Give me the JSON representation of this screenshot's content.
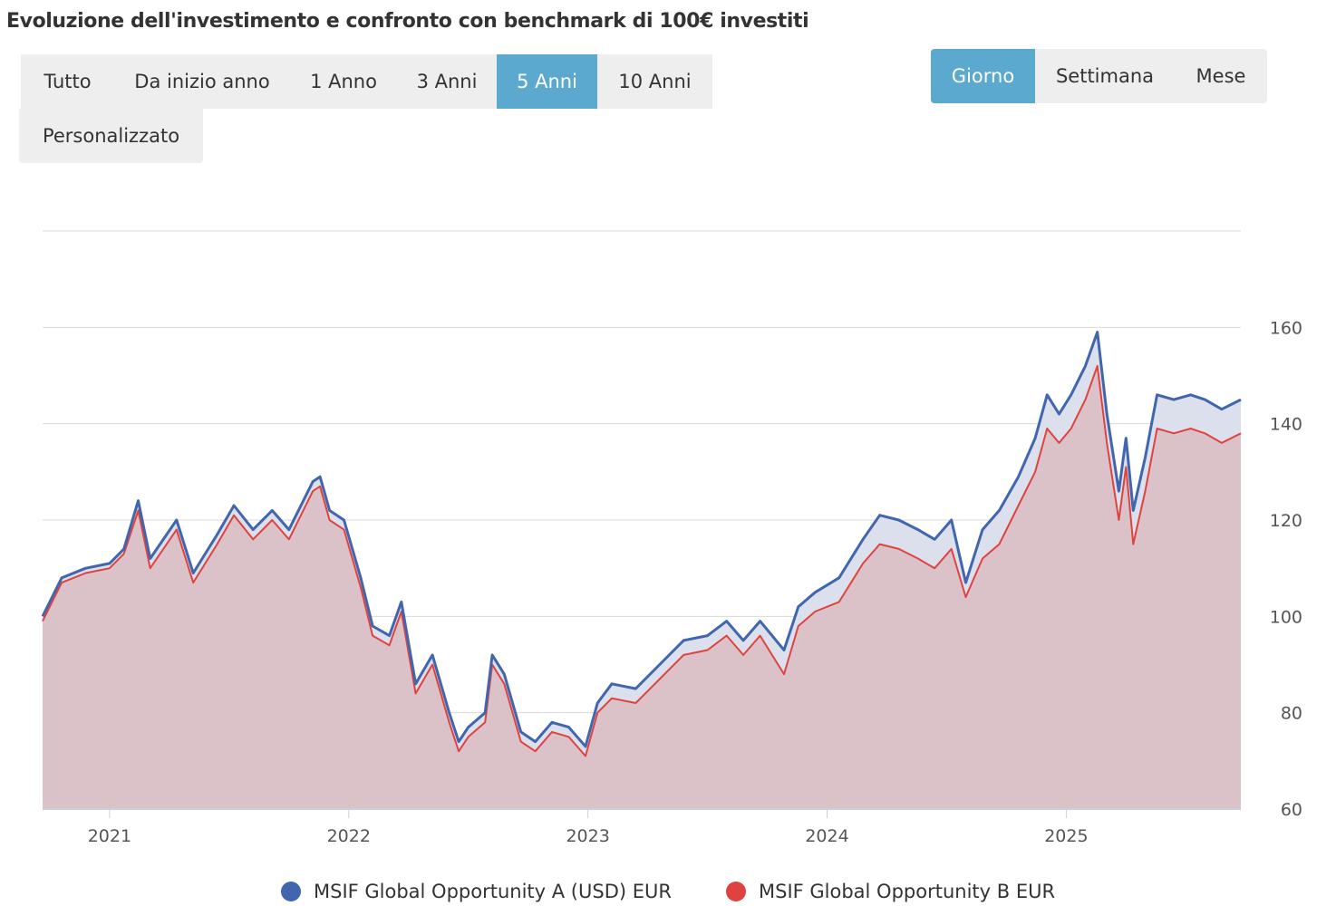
{
  "title": "Evoluzione dell'investimento e confronto con benchmark di 100€ investiti",
  "range_buttons": [
    {
      "label": "Tutto",
      "active": false
    },
    {
      "label": "Da inizio anno",
      "active": false
    },
    {
      "label": "1 Anno",
      "active": false
    },
    {
      "label": "3 Anni",
      "active": false
    },
    {
      "label": "5 Anni",
      "active": true
    },
    {
      "label": "10 Anni",
      "active": false
    }
  ],
  "custom_range_label": "Personalizzato",
  "frequency_buttons": [
    {
      "label": "Giorno",
      "active": true
    },
    {
      "label": "Settimana",
      "active": false
    },
    {
      "label": "Mese",
      "active": false
    }
  ],
  "colors": {
    "accent": "#5ba9cf",
    "series_a": "#4166ae",
    "series_b": "#e0433d",
    "area_b": "#dbc1c8",
    "area_a": "#dbe0ec",
    "grid": "#d8d8d8"
  },
  "chart_data": {
    "type": "area",
    "title": "Evoluzione dell'investimento e confronto con benchmark di 100€ investiti",
    "xlabel": "",
    "ylabel": "",
    "x_ticks": [
      "2021",
      "2022",
      "2023",
      "2024",
      "2025"
    ],
    "x_range": [
      2020.72,
      2025.73
    ],
    "y_ticks": [
      60,
      80,
      100,
      120,
      140,
      160
    ],
    "ylim": [
      60,
      180
    ],
    "y_axis_position": "right",
    "grid": true,
    "legend_position": "bottom-center",
    "series": [
      {
        "name": "MSIF Global Opportunity A (USD) EUR",
        "color": "#4166ae",
        "points": [
          [
            2020.72,
            100
          ],
          [
            2020.8,
            108
          ],
          [
            2020.9,
            110
          ],
          [
            2021.0,
            111
          ],
          [
            2021.06,
            114
          ],
          [
            2021.12,
            124
          ],
          [
            2021.17,
            112
          ],
          [
            2021.28,
            120
          ],
          [
            2021.35,
            109
          ],
          [
            2021.45,
            117
          ],
          [
            2021.52,
            123
          ],
          [
            2021.6,
            118
          ],
          [
            2021.68,
            122
          ],
          [
            2021.75,
            118
          ],
          [
            2021.85,
            128
          ],
          [
            2021.88,
            129
          ],
          [
            2021.92,
            122
          ],
          [
            2021.98,
            120
          ],
          [
            2022.05,
            108
          ],
          [
            2022.1,
            98
          ],
          [
            2022.17,
            96
          ],
          [
            2022.22,
            103
          ],
          [
            2022.28,
            86
          ],
          [
            2022.35,
            92
          ],
          [
            2022.42,
            80
          ],
          [
            2022.46,
            74
          ],
          [
            2022.5,
            77
          ],
          [
            2022.57,
            80
          ],
          [
            2022.6,
            92
          ],
          [
            2022.65,
            88
          ],
          [
            2022.72,
            76
          ],
          [
            2022.78,
            74
          ],
          [
            2022.85,
            78
          ],
          [
            2022.92,
            77
          ],
          [
            2022.99,
            73
          ],
          [
            2023.04,
            82
          ],
          [
            2023.1,
            86
          ],
          [
            2023.2,
            85
          ],
          [
            2023.3,
            90
          ],
          [
            2023.4,
            95
          ],
          [
            2023.5,
            96
          ],
          [
            2023.58,
            99
          ],
          [
            2023.65,
            95
          ],
          [
            2023.72,
            99
          ],
          [
            2023.82,
            93
          ],
          [
            2023.88,
            102
          ],
          [
            2023.95,
            105
          ],
          [
            2024.05,
            108
          ],
          [
            2024.15,
            116
          ],
          [
            2024.22,
            121
          ],
          [
            2024.3,
            120
          ],
          [
            2024.38,
            118
          ],
          [
            2024.45,
            116
          ],
          [
            2024.52,
            120
          ],
          [
            2024.58,
            107
          ],
          [
            2024.65,
            118
          ],
          [
            2024.72,
            122
          ],
          [
            2024.8,
            129
          ],
          [
            2024.87,
            137
          ],
          [
            2024.92,
            146
          ],
          [
            2024.97,
            142
          ],
          [
            2025.02,
            146
          ],
          [
            2025.08,
            152
          ],
          [
            2025.13,
            159
          ],
          [
            2025.17,
            142
          ],
          [
            2025.22,
            126
          ],
          [
            2025.25,
            137
          ],
          [
            2025.28,
            122
          ],
          [
            2025.33,
            133
          ],
          [
            2025.38,
            146
          ],
          [
            2025.45,
            145
          ],
          [
            2025.52,
            146
          ],
          [
            2025.58,
            145
          ],
          [
            2025.65,
            143
          ],
          [
            2025.73,
            145
          ]
        ]
      },
      {
        "name": "MSIF Global Opportunity B EUR",
        "color": "#e0433d",
        "points": [
          [
            2020.72,
            99
          ],
          [
            2020.8,
            107
          ],
          [
            2020.9,
            109
          ],
          [
            2021.0,
            110
          ],
          [
            2021.06,
            113
          ],
          [
            2021.12,
            122
          ],
          [
            2021.17,
            110
          ],
          [
            2021.28,
            118
          ],
          [
            2021.35,
            107
          ],
          [
            2021.45,
            115
          ],
          [
            2021.52,
            121
          ],
          [
            2021.6,
            116
          ],
          [
            2021.68,
            120
          ],
          [
            2021.75,
            116
          ],
          [
            2021.85,
            126
          ],
          [
            2021.88,
            127
          ],
          [
            2021.92,
            120
          ],
          [
            2021.98,
            118
          ],
          [
            2022.05,
            106
          ],
          [
            2022.1,
            96
          ],
          [
            2022.17,
            94
          ],
          [
            2022.22,
            101
          ],
          [
            2022.28,
            84
          ],
          [
            2022.35,
            90
          ],
          [
            2022.42,
            78
          ],
          [
            2022.46,
            72
          ],
          [
            2022.5,
            75
          ],
          [
            2022.57,
            78
          ],
          [
            2022.6,
            90
          ],
          [
            2022.65,
            86
          ],
          [
            2022.72,
            74
          ],
          [
            2022.78,
            72
          ],
          [
            2022.85,
            76
          ],
          [
            2022.92,
            75
          ],
          [
            2022.99,
            71
          ],
          [
            2023.04,
            80
          ],
          [
            2023.1,
            83
          ],
          [
            2023.2,
            82
          ],
          [
            2023.3,
            87
          ],
          [
            2023.4,
            92
          ],
          [
            2023.5,
            93
          ],
          [
            2023.58,
            96
          ],
          [
            2023.65,
            92
          ],
          [
            2023.72,
            96
          ],
          [
            2023.82,
            88
          ],
          [
            2023.88,
            98
          ],
          [
            2023.95,
            101
          ],
          [
            2024.05,
            103
          ],
          [
            2024.15,
            111
          ],
          [
            2024.22,
            115
          ],
          [
            2024.3,
            114
          ],
          [
            2024.38,
            112
          ],
          [
            2024.45,
            110
          ],
          [
            2024.52,
            114
          ],
          [
            2024.58,
            104
          ],
          [
            2024.65,
            112
          ],
          [
            2024.72,
            115
          ],
          [
            2024.8,
            123
          ],
          [
            2024.87,
            130
          ],
          [
            2024.92,
            139
          ],
          [
            2024.97,
            136
          ],
          [
            2025.02,
            139
          ],
          [
            2025.08,
            145
          ],
          [
            2025.13,
            152
          ],
          [
            2025.17,
            136
          ],
          [
            2025.22,
            120
          ],
          [
            2025.25,
            131
          ],
          [
            2025.28,
            115
          ],
          [
            2025.33,
            126
          ],
          [
            2025.38,
            139
          ],
          [
            2025.45,
            138
          ],
          [
            2025.52,
            139
          ],
          [
            2025.58,
            138
          ],
          [
            2025.65,
            136
          ],
          [
            2025.73,
            138
          ]
        ]
      }
    ]
  }
}
